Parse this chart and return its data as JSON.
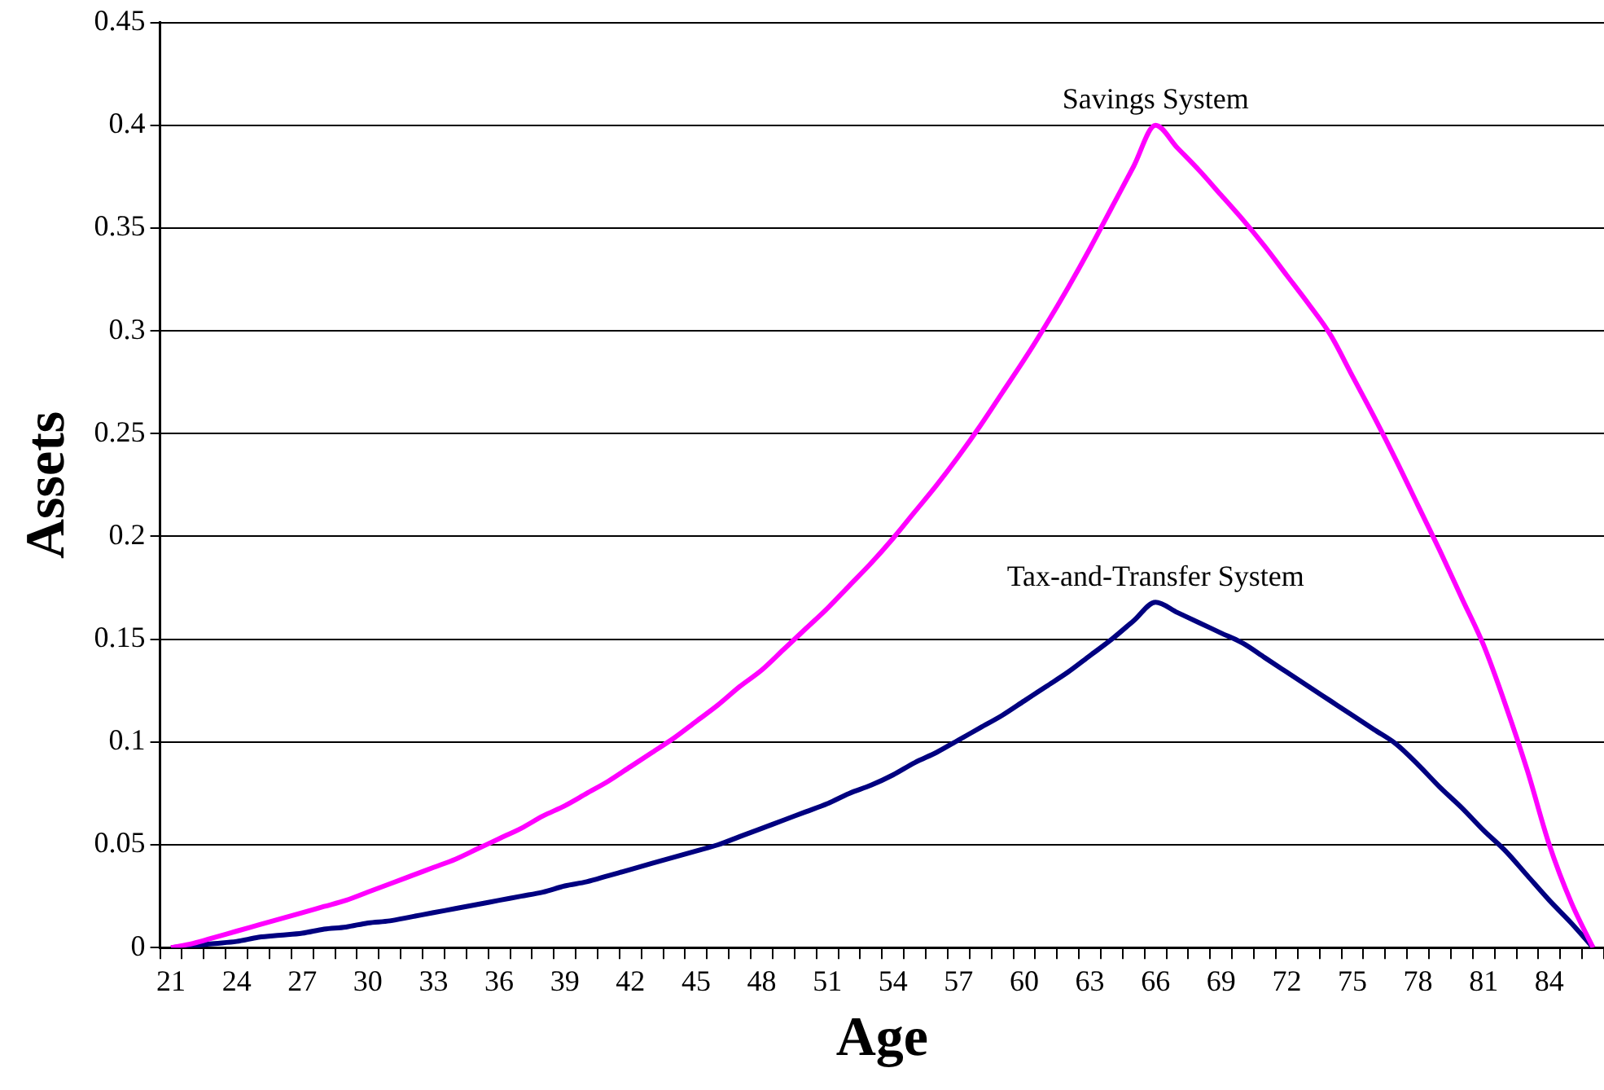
{
  "chart_data": {
    "type": "line",
    "xlabel": "Age",
    "ylabel": "Assets",
    "categories": [
      "21",
      null,
      null,
      "24",
      null,
      null,
      "27",
      null,
      null,
      "30",
      null,
      null,
      "33",
      null,
      null,
      "36",
      null,
      null,
      "39",
      null,
      null,
      "42",
      null,
      null,
      "45",
      null,
      null,
      "48",
      null,
      null,
      "51",
      null,
      null,
      "54",
      null,
      null,
      "57",
      null,
      null,
      "60",
      null,
      null,
      "63",
      null,
      null,
      "66",
      null,
      null,
      "69",
      null,
      null,
      "72",
      null,
      null,
      "75",
      null,
      null,
      "78",
      null,
      null,
      "81",
      null,
      null,
      "84",
      null,
      null
    ],
    "series": [
      {
        "color": "#ff00ff",
        "values": [
          0,
          0.002,
          0.005,
          0.008,
          0.011,
          0.014,
          0.017,
          0.02,
          0.023,
          0.027,
          0.031,
          0.035,
          0.039,
          0.043,
          0.048,
          0.053,
          0.058,
          0.064,
          0.069,
          0.075,
          0.081,
          0.088,
          0.095,
          0.102,
          0.11,
          0.118,
          0.127,
          0.135,
          0.145,
          0.155,
          0.165,
          0.176,
          0.187,
          0.199,
          0.212,
          0.225,
          0.239,
          0.254,
          0.27,
          0.286,
          0.303,
          0.321,
          0.34,
          0.36,
          0.38,
          0.4,
          0.389,
          0.378,
          0.366,
          0.354,
          0.341,
          0.327,
          0.313,
          0.298,
          0.278,
          0.258,
          0.237,
          0.215,
          0.193,
          0.17,
          0.147,
          0.118,
          0.086,
          0.05,
          0.022,
          0
        ]
      },
      {
        "color": "#000080",
        "values": [
          0,
          0.001,
          0.002,
          0.003,
          0.005,
          0.006,
          0.007,
          0.009,
          0.01,
          0.012,
          0.013,
          0.015,
          0.017,
          0.019,
          0.021,
          0.023,
          0.025,
          0.027,
          0.03,
          0.032,
          0.035,
          0.038,
          0.041,
          0.044,
          0.047,
          0.05,
          0.054,
          0.058,
          0.062,
          0.066,
          0.07,
          0.075,
          0.079,
          0.084,
          0.09,
          0.095,
          0.101,
          0.107,
          0.113,
          0.12,
          0.127,
          0.134,
          0.142,
          0.15,
          0.159,
          0.168,
          0.163,
          0.158,
          0.153,
          0.148,
          0.141,
          0.134,
          0.127,
          0.12,
          0.113,
          0.106,
          0.099,
          0.089,
          0.078,
          0.068,
          0.057,
          0.047,
          0.035,
          0.023,
          0.012,
          0
        ]
      }
    ],
    "annotations": [
      {
        "text": "Savings System",
        "x": "66",
        "y": 0.4
      },
      {
        "text": "Tax-and-Transfer System",
        "x": "66",
        "y": 0.168
      }
    ],
    "ylim": [
      0,
      0.45
    ],
    "yticks": [
      0,
      0.05,
      0.1,
      0.15,
      0.2,
      0.25,
      0.3,
      0.35,
      0.4,
      0.45
    ],
    "grid": "y",
    "legend": false,
    "marker": "none",
    "line_style": "solid"
  }
}
